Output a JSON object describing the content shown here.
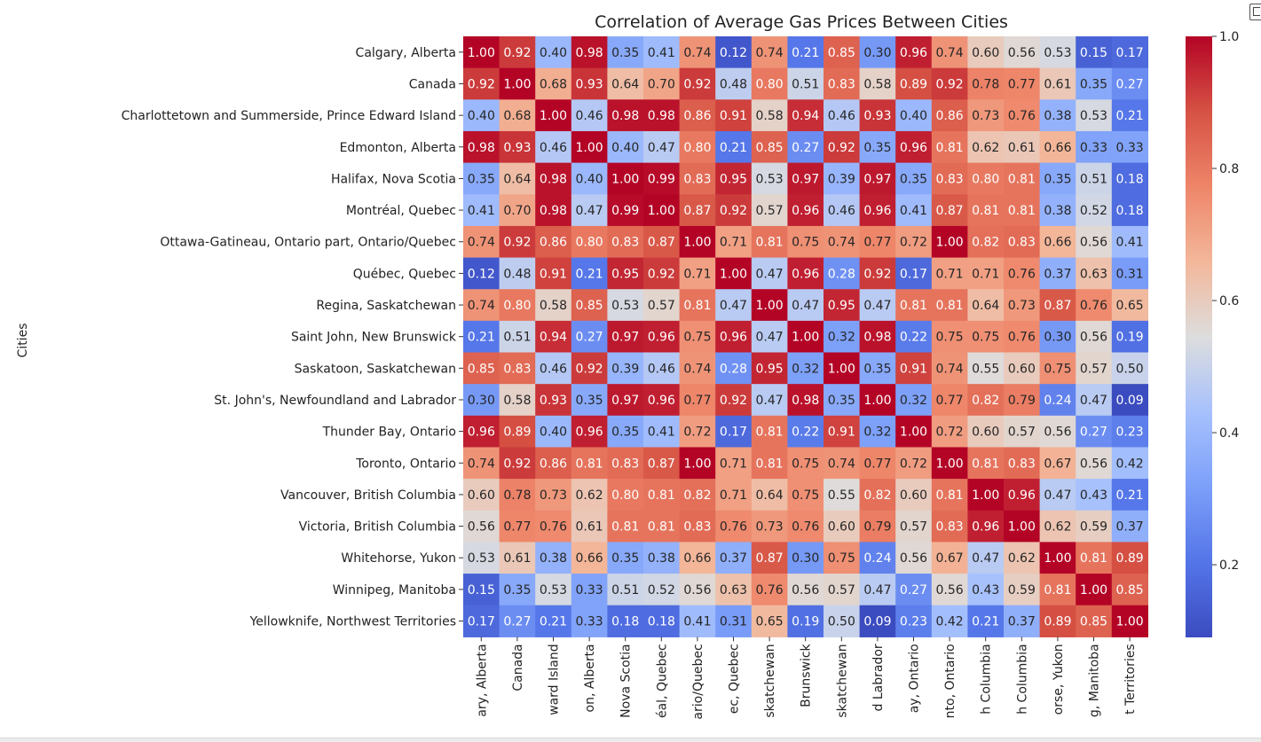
{
  "chart_data": {
    "type": "heatmap",
    "title": "Correlation of Average Gas Prices Between Cities",
    "ylabel": "Cities",
    "xlabel": "",
    "colormap": "coolwarm",
    "colorbar": {
      "range": [
        0.09,
        1.0
      ],
      "ticks": [
        "0.2",
        "0.4",
        "0.6",
        "0.8",
        "1.0"
      ]
    },
    "row_labels": [
      "Calgary, Alberta",
      "Canada",
      "Charlottetown and Summerside, Prince Edward Island",
      "Edmonton, Alberta",
      "Halifax, Nova Scotia",
      "Montréal, Quebec",
      "Ottawa-Gatineau, Ontario part, Ontario/Quebec",
      "Québec, Quebec",
      "Regina, Saskatchewan",
      "Saint John, New Brunswick",
      "Saskatoon, Saskatchewan",
      "St. John's, Newfoundland and Labrador",
      "Thunder Bay, Ontario",
      "Toronto, Ontario",
      "Vancouver, British Columbia",
      "Victoria, British Columbia",
      "Whitehorse, Yukon",
      "Winnipeg, Manitoba",
      "Yellowknife, Northwest Territories"
    ],
    "column_labels_visible": [
      "ary, Alberta",
      "Canada",
      "ward Island",
      "on, Alberta",
      "Nova Scotia",
      "éal, Quebec",
      "ario/Quebec",
      "ec, Quebec",
      "skatchewan",
      "Brunswick",
      "skatchewan",
      "d Labrador",
      "ay, Ontario",
      "nto, Ontario",
      "h Columbia",
      "h Columbia",
      "orse, Yukon",
      "g, Manitoba",
      "t Territories"
    ],
    "values": [
      [
        1.0,
        0.92,
        0.4,
        0.98,
        0.35,
        0.41,
        0.74,
        0.12,
        0.74,
        0.21,
        0.85,
        0.3,
        0.96,
        0.74,
        0.6,
        0.56,
        0.53,
        0.15,
        0.17
      ],
      [
        0.92,
        1.0,
        0.68,
        0.93,
        0.64,
        0.7,
        0.92,
        0.48,
        0.8,
        0.51,
        0.83,
        0.58,
        0.89,
        0.92,
        0.78,
        0.77,
        0.61,
        0.35,
        0.27
      ],
      [
        0.4,
        0.68,
        1.0,
        0.46,
        0.98,
        0.98,
        0.86,
        0.91,
        0.58,
        0.94,
        0.46,
        0.93,
        0.4,
        0.86,
        0.73,
        0.76,
        0.38,
        0.53,
        0.21
      ],
      [
        0.98,
        0.93,
        0.46,
        1.0,
        0.4,
        0.47,
        0.8,
        0.21,
        0.85,
        0.27,
        0.92,
        0.35,
        0.96,
        0.81,
        0.62,
        0.61,
        0.66,
        0.33,
        0.33
      ],
      [
        0.35,
        0.64,
        0.98,
        0.4,
        1.0,
        0.99,
        0.83,
        0.95,
        0.53,
        0.97,
        0.39,
        0.97,
        0.35,
        0.83,
        0.8,
        0.81,
        0.35,
        0.51,
        0.18
      ],
      [
        0.41,
        0.7,
        0.98,
        0.47,
        0.99,
        1.0,
        0.87,
        0.92,
        0.57,
        0.96,
        0.46,
        0.96,
        0.41,
        0.87,
        0.81,
        0.81,
        0.38,
        0.52,
        0.18
      ],
      [
        0.74,
        0.92,
        0.86,
        0.8,
        0.83,
        0.87,
        1.0,
        0.71,
        0.81,
        0.75,
        0.74,
        0.77,
        0.72,
        1.0,
        0.82,
        0.83,
        0.66,
        0.56,
        0.41
      ],
      [
        0.12,
        0.48,
        0.91,
        0.21,
        0.95,
        0.92,
        0.71,
        1.0,
        0.47,
        0.96,
        0.28,
        0.92,
        0.17,
        0.71,
        0.71,
        0.76,
        0.37,
        0.63,
        0.31
      ],
      [
        0.74,
        0.8,
        0.58,
        0.85,
        0.53,
        0.57,
        0.81,
        0.47,
        1.0,
        0.47,
        0.95,
        0.47,
        0.81,
        0.81,
        0.64,
        0.73,
        0.87,
        0.76,
        0.65
      ],
      [
        0.21,
        0.51,
        0.94,
        0.27,
        0.97,
        0.96,
        0.75,
        0.96,
        0.47,
        1.0,
        0.32,
        0.98,
        0.22,
        0.75,
        0.75,
        0.76,
        0.3,
        0.56,
        0.19
      ],
      [
        0.85,
        0.83,
        0.46,
        0.92,
        0.39,
        0.46,
        0.74,
        0.28,
        0.95,
        0.32,
        1.0,
        0.35,
        0.91,
        0.74,
        0.55,
        0.6,
        0.75,
        0.57,
        0.5
      ],
      [
        0.3,
        0.58,
        0.93,
        0.35,
        0.97,
        0.96,
        0.77,
        0.92,
        0.47,
        0.98,
        0.35,
        1.0,
        0.32,
        0.77,
        0.82,
        0.79,
        0.24,
        0.47,
        0.09
      ],
      [
        0.96,
        0.89,
        0.4,
        0.96,
        0.35,
        0.41,
        0.72,
        0.17,
        0.81,
        0.22,
        0.91,
        0.32,
        1.0,
        0.72,
        0.6,
        0.57,
        0.56,
        0.27,
        0.23
      ],
      [
        0.74,
        0.92,
        0.86,
        0.81,
        0.83,
        0.87,
        1.0,
        0.71,
        0.81,
        0.75,
        0.74,
        0.77,
        0.72,
        1.0,
        0.81,
        0.83,
        0.67,
        0.56,
        0.42
      ],
      [
        0.6,
        0.78,
        0.73,
        0.62,
        0.8,
        0.81,
        0.82,
        0.71,
        0.64,
        0.75,
        0.55,
        0.82,
        0.6,
        0.81,
        1.0,
        0.96,
        0.47,
        0.43,
        0.21
      ],
      [
        0.56,
        0.77,
        0.76,
        0.61,
        0.81,
        0.81,
        0.83,
        0.76,
        0.73,
        0.76,
        0.6,
        0.79,
        0.57,
        0.83,
        0.96,
        1.0,
        0.62,
        0.59,
        0.37
      ],
      [
        0.53,
        0.61,
        0.38,
        0.66,
        0.35,
        0.38,
        0.66,
        0.37,
        0.87,
        0.3,
        0.75,
        0.24,
        0.56,
        0.67,
        0.47,
        0.62,
        1.0,
        0.81,
        0.89
      ],
      [
        0.15,
        0.35,
        0.53,
        0.33,
        0.51,
        0.52,
        0.56,
        0.63,
        0.76,
        0.56,
        0.57,
        0.47,
        0.27,
        0.56,
        0.43,
        0.59,
        0.81,
        1.0,
        0.85
      ],
      [
        0.17,
        0.27,
        0.21,
        0.33,
        0.18,
        0.18,
        0.41,
        0.31,
        0.65,
        0.19,
        0.5,
        0.09,
        0.23,
        0.42,
        0.21,
        0.37,
        0.89,
        0.85,
        1.0
      ]
    ]
  },
  "toolbar": {
    "copy_icon": "copy-icon"
  }
}
